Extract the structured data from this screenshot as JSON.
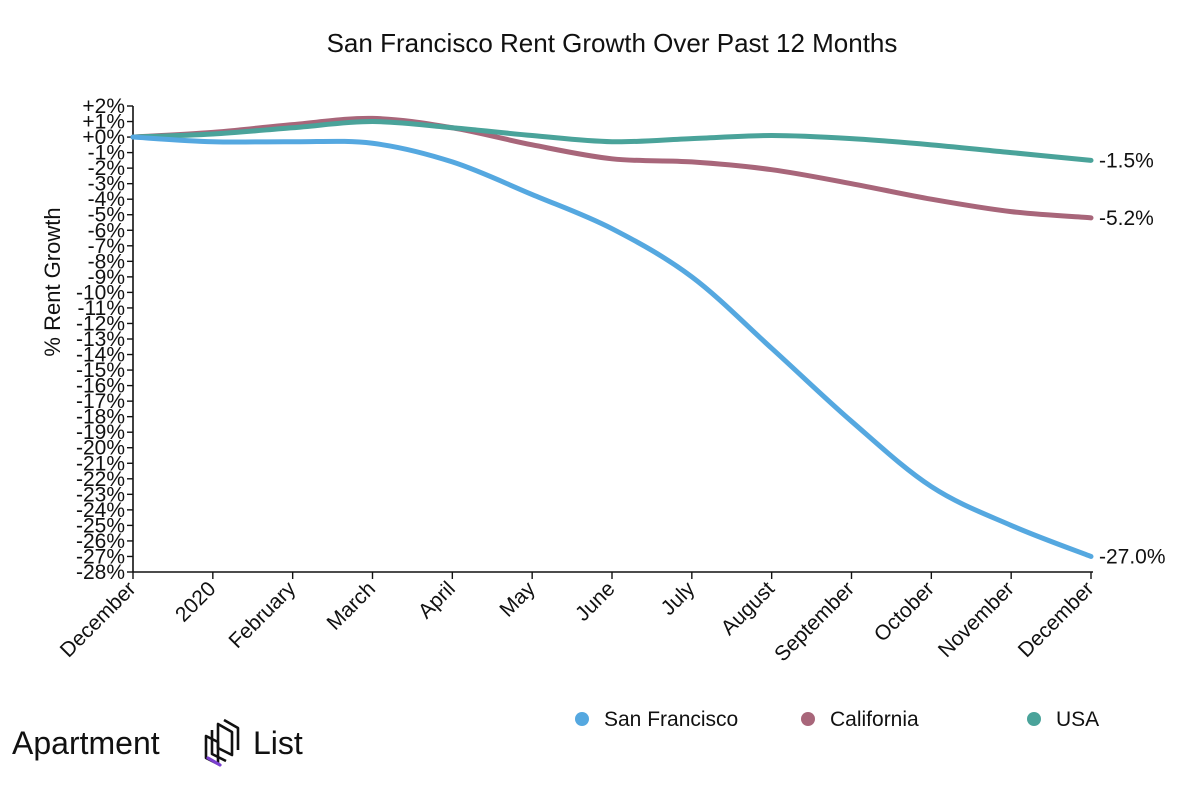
{
  "chart_data": {
    "type": "line",
    "title": "San Francisco Rent Growth Over Past 12 Months",
    "xlabel": "",
    "ylabel": "% Rent Growth",
    "ylim": [
      -28,
      2
    ],
    "yticks": [
      "+2%",
      "+1%",
      "+0%",
      "-1%",
      "-2%",
      "-3%",
      "-4%",
      "-5%",
      "-6%",
      "-7%",
      "-8%",
      "-9%",
      "-10%",
      "-11%",
      "-12%",
      "-13%",
      "-14%",
      "-15%",
      "-16%",
      "-17%",
      "-18%",
      "-19%",
      "-20%",
      "-21%",
      "-22%",
      "-23%",
      "-24%",
      "-25%",
      "-26%",
      "-27%",
      "-28%"
    ],
    "ytick_values": [
      2,
      1,
      0,
      -1,
      -2,
      -3,
      -4,
      -5,
      -6,
      -7,
      -8,
      -9,
      -10,
      -11,
      -12,
      -13,
      -14,
      -15,
      -16,
      -17,
      -18,
      -19,
      -20,
      -21,
      -22,
      -23,
      -24,
      -25,
      -26,
      -27,
      -28
    ],
    "categories": [
      "December",
      "2020",
      "February",
      "March",
      "April",
      "May",
      "June",
      "July",
      "August",
      "September",
      "October",
      "November",
      "December"
    ],
    "series": [
      {
        "name": "San Francisco",
        "color": "#55a8e0",
        "end_label": "-27.0%",
        "values": [
          0,
          -0.3,
          -0.3,
          -0.4,
          -1.6,
          -3.7,
          -5.9,
          -9.0,
          -13.6,
          -18.3,
          -22.5,
          -25.0,
          -27.0
        ]
      },
      {
        "name": "California",
        "color": "#a8667a",
        "end_label": "-5.2%",
        "values": [
          0,
          0.3,
          0.8,
          1.2,
          0.6,
          -0.5,
          -1.4,
          -1.6,
          -2.1,
          -3.0,
          -4.0,
          -4.8,
          -5.2
        ]
      },
      {
        "name": "USA",
        "color": "#4aa39a",
        "end_label": "-1.5%",
        "values": [
          0,
          0.2,
          0.6,
          1.0,
          0.6,
          0.1,
          -0.3,
          -0.1,
          0.1,
          -0.1,
          -0.5,
          -1.0,
          -1.5
        ]
      }
    ],
    "legend_position": "bottom-right"
  },
  "branding": {
    "logo_word_1": "Apartment",
    "logo_word_2": "List",
    "logo_icon": "apartment-list-logo-icon",
    "logo_colors": [
      "#111111",
      "#7b3fd0"
    ]
  }
}
